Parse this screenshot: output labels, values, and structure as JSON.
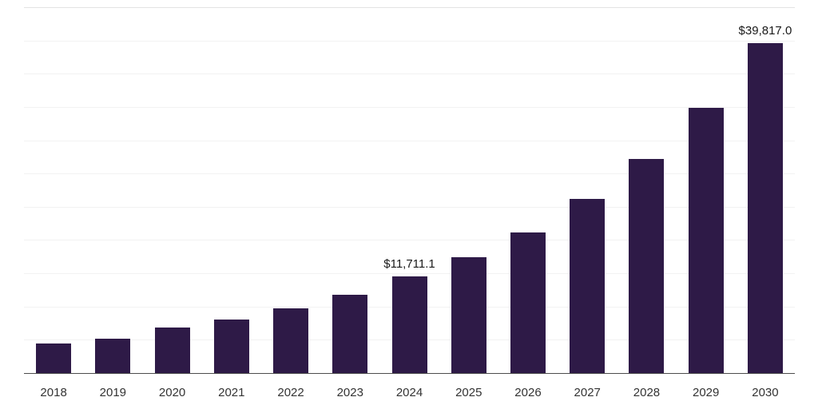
{
  "chart_data": {
    "type": "bar",
    "title": "",
    "xlabel": "",
    "ylabel": "",
    "categories": [
      "2018",
      "2019",
      "2020",
      "2021",
      "2022",
      "2023",
      "2024",
      "2025",
      "2026",
      "2027",
      "2028",
      "2029",
      "2030"
    ],
    "values": [
      3650,
      4250,
      5550,
      6550,
      7900,
      9500,
      11711.1,
      14050,
      17000,
      21050,
      25850,
      32000,
      39817.0
    ],
    "data_labels": [
      "",
      "",
      "",
      "",
      "",
      "",
      "$11,711.1",
      "",
      "",
      "",
      "",
      "",
      "$39,817.0"
    ],
    "ylim": [
      0,
      44000
    ],
    "grid_step": 4000,
    "grid": "horizontal",
    "legend": "none",
    "bar_color": "#2E1A47",
    "label_color": "#1A1A1A",
    "axis_color": "#4D4D4D"
  }
}
